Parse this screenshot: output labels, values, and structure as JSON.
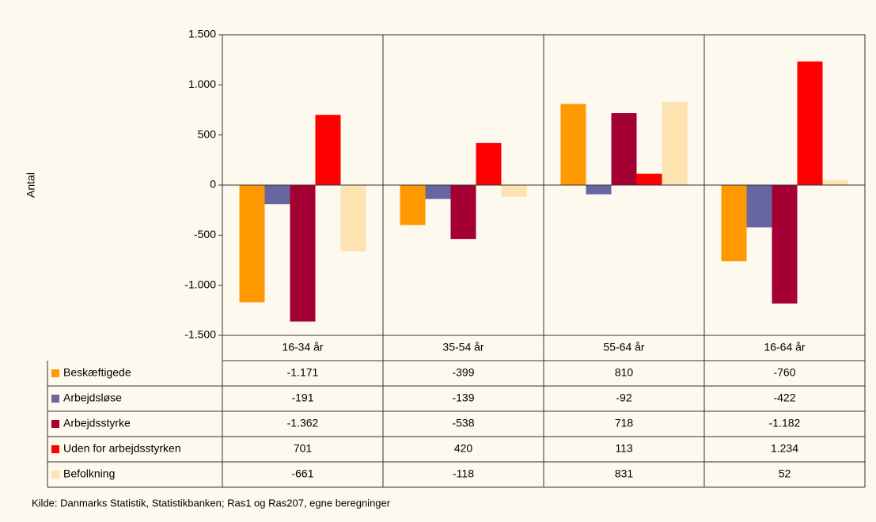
{
  "chart_data": {
    "type": "bar",
    "y_label": "Antal",
    "categories": [
      "16-34 år",
      "35-54 år",
      "55-64 år",
      "16-64 år"
    ],
    "series": [
      {
        "name": "Beskæftigede",
        "color": "#ff9900",
        "values": [
          -1171,
          -399,
          810,
          -760
        ],
        "value_labels": [
          "-1.171",
          "-399",
          "810",
          "-760"
        ]
      },
      {
        "name": "Arbejdsløse",
        "color": "#6666a0",
        "values": [
          -191,
          -139,
          -92,
          -422
        ],
        "value_labels": [
          "-191",
          "-139",
          "-92",
          "-422"
        ]
      },
      {
        "name": "Arbejdsstyrke",
        "color": "#a50034",
        "values": [
          -1362,
          -538,
          718,
          -1182
        ],
        "value_labels": [
          "-1.362",
          "-538",
          "718",
          "-1.182"
        ]
      },
      {
        "name": "Uden for arbejdsstyrken",
        "color": "#ff0000",
        "values": [
          701,
          420,
          113,
          1234
        ],
        "value_labels": [
          "701",
          "420",
          "113",
          "1.234"
        ]
      },
      {
        "name": "Befolkning",
        "color": "#fde3b0",
        "values": [
          -661,
          -118,
          831,
          52
        ],
        "value_labels": [
          "-661",
          "-118",
          "831",
          "52"
        ]
      }
    ],
    "ylim": [
      -1500,
      1500
    ],
    "yticks": [
      {
        "value": -1500,
        "label": "-1.500"
      },
      {
        "value": -1000,
        "label": "-1.000"
      },
      -500,
      0,
      500,
      {
        "value": 1000,
        "label": "1.000"
      },
      {
        "value": 1500,
        "label": "1.500"
      }
    ],
    "grid": false,
    "source": "Kilde: Danmarks Statistik, Statistikbanken; Ras1 og Ras207, egne beregninger"
  }
}
